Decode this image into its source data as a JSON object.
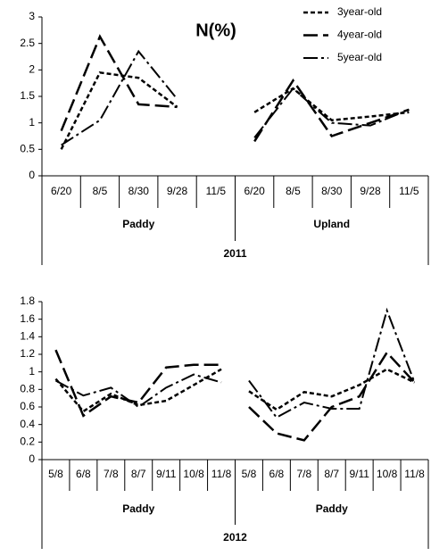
{
  "chart_data": [
    {
      "type": "line",
      "title": "N(%)",
      "categories": [
        "6/20",
        "8/5",
        "8/30",
        "9/28",
        "11/5",
        "6/20",
        "8/5",
        "8/30",
        "9/28",
        "11/5"
      ],
      "groups": [
        "Paddy",
        "Upland"
      ],
      "supergroup": "2011",
      "ylim": [
        0,
        3
      ],
      "yticks": [
        0,
        0.5,
        1,
        1.5,
        2,
        2.5,
        3
      ],
      "legend": "top-right",
      "series": [
        {
          "name": "3year-old",
          "color": "#000000",
          "dash": "short",
          "values": [
            0.5,
            1.95,
            1.85,
            1.3,
            null,
            1.2,
            1.65,
            1.05,
            1.12,
            1.2
          ]
        },
        {
          "name": "4year-old",
          "color": "#000000",
          "dash": "long",
          "values": [
            0.85,
            2.63,
            1.35,
            1.3,
            null,
            0.65,
            1.8,
            0.75,
            1.0,
            1.25
          ]
        },
        {
          "name": "5year-old",
          "color": "#000000",
          "dash": "dash-dot",
          "values": [
            0.58,
            1.05,
            2.35,
            1.45,
            null,
            0.72,
            1.65,
            1.0,
            0.95,
            1.25
          ]
        }
      ]
    },
    {
      "type": "line",
      "categories": [
        "5/8",
        "6/8",
        "7/8",
        "8/7",
        "9/11",
        "10/8",
        "11/8",
        "5/8",
        "6/8",
        "7/8",
        "8/7",
        "9/11",
        "10/8",
        "11/8"
      ],
      "groups": [
        "Paddy",
        "Paddy"
      ],
      "supergroup": "2012",
      "ylim": [
        0,
        1.8
      ],
      "yticks": [
        0,
        0.2,
        0.4,
        0.6,
        0.8,
        1,
        1.2,
        1.4,
        1.6,
        1.8
      ],
      "series": [
        {
          "color": "#000000",
          "dash": "short",
          "values": [
            0.92,
            0.55,
            0.75,
            0.62,
            0.67,
            0.85,
            1.03,
            0.78,
            0.57,
            0.77,
            0.72,
            0.85,
            1.03,
            0.88
          ]
        },
        {
          "color": "#000000",
          "dash": "long",
          "values": [
            1.25,
            0.5,
            0.72,
            0.65,
            1.05,
            1.08,
            1.08,
            0.6,
            0.3,
            0.22,
            0.6,
            0.72,
            1.22,
            0.88
          ]
        },
        {
          "color": "#000000",
          "dash": "dash-dot",
          "values": [
            0.9,
            0.73,
            0.82,
            0.6,
            0.82,
            0.97,
            0.88,
            0.9,
            0.48,
            0.65,
            0.58,
            0.58,
            1.7,
            0.88
          ]
        }
      ]
    }
  ]
}
